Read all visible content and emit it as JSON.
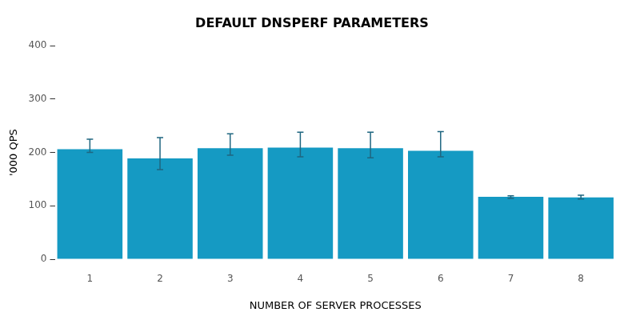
{
  "chart_data": {
    "type": "bar",
    "title": "DEFAULT DNSPERF PARAMETERS",
    "x_label": "NUMBER OF SERVER PROCESSES",
    "y_label": "'000 QPS",
    "categories": [
      "1",
      "2",
      "3",
      "4",
      "5",
      "6",
      "7",
      "8"
    ],
    "values": [
      206,
      189,
      208,
      209,
      208,
      203,
      117,
      116
    ],
    "error_low": [
      200,
      168,
      195,
      192,
      190,
      192,
      114,
      113
    ],
    "error_high": [
      225,
      228,
      235,
      238,
      238,
      239,
      119,
      120
    ],
    "color": "#159ac3",
    "ylim": [
      0,
      400
    ],
    "yticks": [
      0,
      100,
      200,
      300,
      400
    ],
    "grid": false
  }
}
